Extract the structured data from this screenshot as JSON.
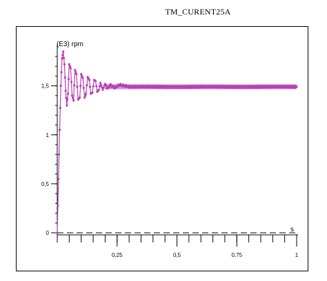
{
  "chart_data": {
    "type": "line",
    "title": "TM_CURENT25A",
    "ylabel": "(E3) rpm",
    "xlabel": "s",
    "xlim": [
      0,
      1
    ],
    "ylim": [
      0,
      1.87
    ],
    "x_ticks": [
      "0,25",
      "0,5",
      "0,75",
      "1"
    ],
    "y_ticks": [
      "0",
      "0,5",
      "1",
      "1,5"
    ],
    "x_tick_values": [
      0.25,
      0.5,
      0.75,
      1
    ],
    "y_tick_values": [
      0,
      0.5,
      1,
      1.5
    ],
    "grid": false,
    "legend": "none",
    "series": [
      {
        "color": "#b53fb5",
        "marker": "dot",
        "x": [
          0,
          0.005,
          0.01,
          0.015,
          0.02,
          0.025,
          0.03,
          0.035,
          0.04,
          0.045,
          0.05,
          0.056,
          0.062,
          0.068,
          0.074,
          0.08,
          0.087,
          0.094,
          0.1,
          0.107,
          0.114,
          0.12,
          0.127,
          0.134,
          0.14,
          0.147,
          0.154,
          0.16,
          0.167,
          0.174,
          0.18,
          0.19,
          0.2,
          0.21,
          0.22,
          0.24,
          0.26,
          0.3,
          0.4,
          0.5,
          0.6,
          0.7,
          0.8,
          0.9,
          1.0
        ],
        "y": [
          0.0,
          0.55,
          1.05,
          1.5,
          1.78,
          1.85,
          1.72,
          1.45,
          1.3,
          1.42,
          1.72,
          1.68,
          1.4,
          1.35,
          1.66,
          1.62,
          1.36,
          1.38,
          1.62,
          1.58,
          1.38,
          1.42,
          1.59,
          1.56,
          1.42,
          1.43,
          1.56,
          1.55,
          1.44,
          1.46,
          1.53,
          1.46,
          1.52,
          1.47,
          1.51,
          1.48,
          1.51,
          1.49,
          1.49,
          1.49,
          1.49,
          1.49,
          1.49,
          1.49,
          1.49
        ]
      }
    ]
  }
}
